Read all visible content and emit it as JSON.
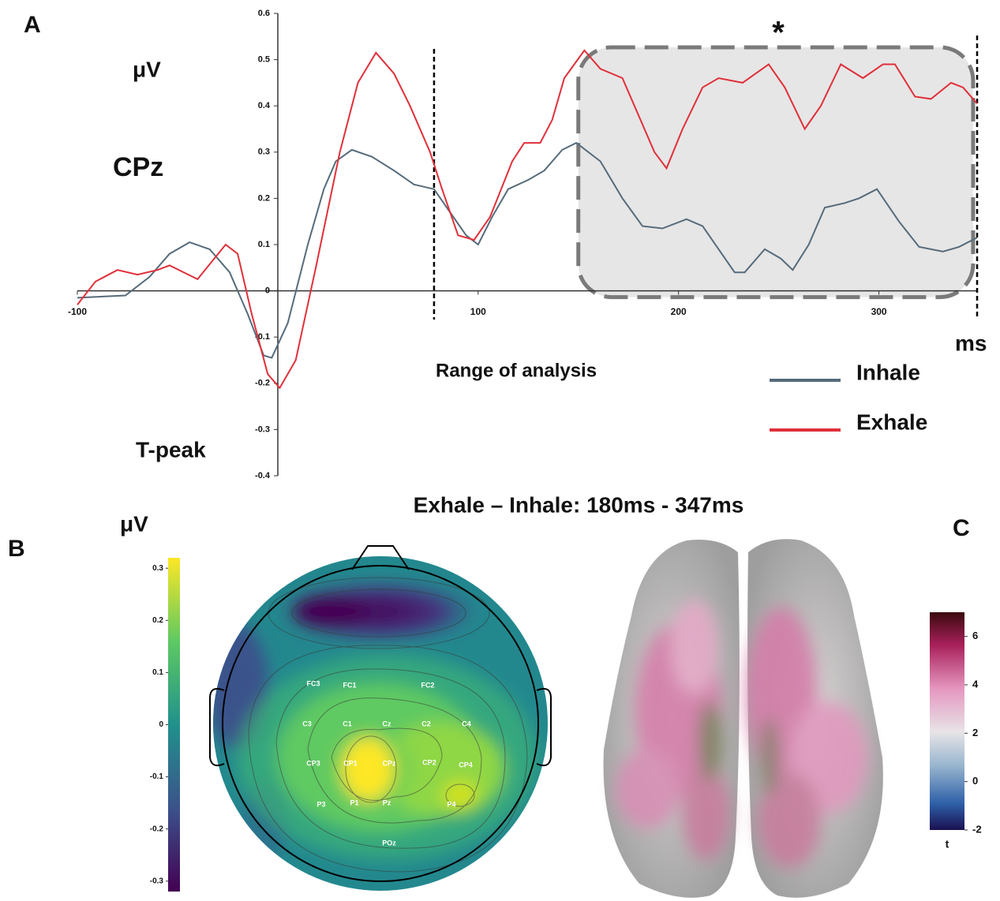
{
  "panel_labels": {
    "a": "A",
    "b": "B",
    "c": "C"
  },
  "chart_data": {
    "type": "line",
    "y_label": "μV",
    "channel": "CPz",
    "event": "T-peak",
    "x_label": "ms",
    "annotation": "Range of analysis",
    "significance": "*",
    "xlim": [
      -100,
      349
    ],
    "ylim": [
      -0.4,
      0.6
    ],
    "xticks": [
      -100,
      100,
      200,
      300
    ],
    "yticks": [
      0.6,
      0.5,
      0.4,
      0.3,
      0.2,
      0.1,
      0,
      -0.1,
      -0.2,
      -0.3,
      -0.4
    ],
    "vlines": [
      78,
      349
    ],
    "highlight": [
      150,
      347
    ],
    "series": [
      {
        "name": "Inhale",
        "color": "#566b7b",
        "x": [
          -100,
          -76,
          -64,
          -54,
          -44,
          -34,
          -24,
          -15,
          -7,
          -3,
          5,
          15,
          23,
          29,
          37,
          47,
          58,
          68,
          78,
          86,
          94,
          100,
          107,
          115,
          125,
          133,
          142,
          149,
          161,
          172,
          182,
          192,
          204,
          212,
          220,
          228,
          233,
          243,
          251,
          257,
          265,
          273,
          283,
          290,
          299,
          310,
          320,
          332,
          340,
          349
        ],
        "values": [
          -0.015,
          -0.01,
          0.03,
          0.08,
          0.105,
          0.09,
          0.04,
          -0.05,
          -0.14,
          -0.145,
          -0.07,
          0.1,
          0.22,
          0.28,
          0.305,
          0.29,
          0.26,
          0.23,
          0.22,
          0.17,
          0.12,
          0.1,
          0.16,
          0.22,
          0.24,
          0.26,
          0.305,
          0.32,
          0.28,
          0.2,
          0.14,
          0.135,
          0.155,
          0.14,
          0.09,
          0.04,
          0.04,
          0.09,
          0.07,
          0.045,
          0.1,
          0.18,
          0.19,
          0.2,
          0.22,
          0.15,
          0.095,
          0.085,
          0.095,
          0.115
        ]
      },
      {
        "name": "Exhale",
        "color": "#e0303a",
        "x": [
          -100,
          -91,
          -80,
          -70,
          -60,
          -54,
          -40,
          -26,
          -20,
          -13,
          -5,
          1,
          9,
          19,
          31,
          40,
          49,
          58,
          66,
          76,
          82,
          90,
          98,
          106,
          117,
          123,
          131,
          137,
          143,
          153,
          161,
          172,
          180,
          188,
          194,
          202,
          212,
          220,
          232,
          245,
          253,
          263,
          271,
          281,
          292,
          302,
          308,
          318,
          326,
          336,
          342,
          349
        ],
        "values": [
          -0.03,
          0.02,
          0.045,
          0.035,
          0.045,
          0.055,
          0.025,
          0.1,
          0.08,
          -0.05,
          -0.18,
          -0.21,
          -0.15,
          0.05,
          0.3,
          0.45,
          0.515,
          0.47,
          0.4,
          0.3,
          0.22,
          0.12,
          0.11,
          0.16,
          0.28,
          0.32,
          0.32,
          0.37,
          0.46,
          0.52,
          0.48,
          0.46,
          0.38,
          0.3,
          0.265,
          0.35,
          0.44,
          0.46,
          0.45,
          0.49,
          0.44,
          0.35,
          0.4,
          0.49,
          0.46,
          0.49,
          0.49,
          0.42,
          0.415,
          0.45,
          0.44,
          0.405
        ]
      }
    ]
  },
  "topomap": {
    "title": "Exhale – Inhale: 180ms - 347ms",
    "unit": "μV",
    "colorbar_lim": [
      -0.32,
      0.32
    ],
    "colorbar_ticks": [
      0.3,
      0.2,
      0.1,
      0,
      -0.1,
      -0.2,
      -0.3
    ],
    "electrodes": [
      "FC3",
      "FC1",
      "FC2",
      "C3",
      "C1",
      "Cz",
      "C2",
      "C4",
      "CP3",
      "CP1",
      "CPz",
      "CP2",
      "CP4",
      "P3",
      "P1",
      "Pz",
      "P4",
      "POz"
    ]
  },
  "source_map": {
    "colorbar_lim": [
      -2,
      7
    ],
    "colorbar_ticks": [
      6,
      4,
      2,
      0,
      -2
    ],
    "colorbar_label": "t"
  }
}
